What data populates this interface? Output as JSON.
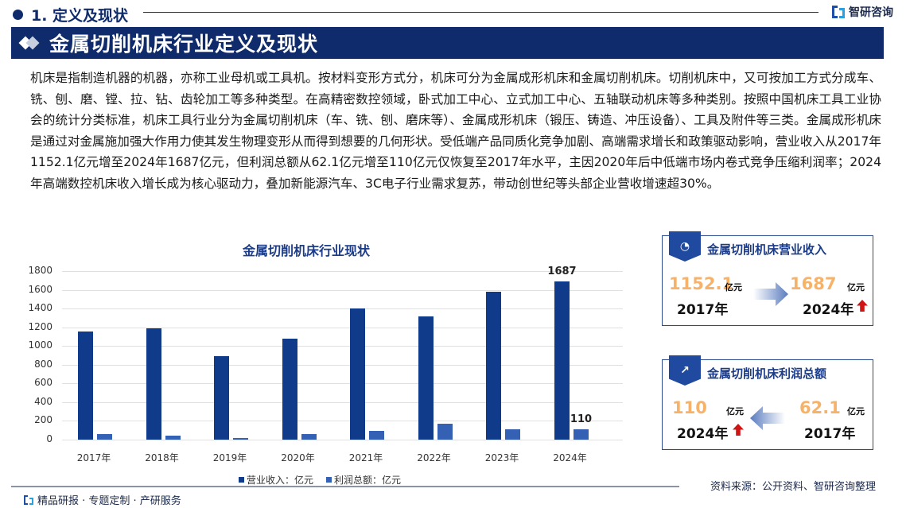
{
  "section": {
    "title": "1. 定义及现状"
  },
  "brand": {
    "name": "智研咨询"
  },
  "banner": {
    "title": "金属切削机床行业定义及现状"
  },
  "body_text": "机床是指制造机器的机器，亦称工业母机或工具机。按材料变形方式分，机床可分为金属成形机床和金属切削机床。切削机床中，又可按加工方式分成车、铣、刨、磨、镗、拉、钻、齿轮加工等多种类型。在高精密数控领域，卧式加工中心、立式加工中心、五轴联动机床等多种类别。按照中国机床工具工业协会的统计分类标准，机床工具行业分为金属切削机床（车、铣、刨、磨床等）、金属成形机床（锻压、铸造、冲压设备）、工具及附件等三类。金属成形机床是通过对金属施加强大作用力使其发生物理变形从而得到想要的几何形状。受低端产品同质化竞争加剧、高端需求增长和政策驱动影响，营业收入从2017年1152.1亿元增至2024年1687亿元，但利润总额从62.1亿元增至110亿元仅恢复至2017年水平，主因2020年后中低端市场内卷式竞争压缩利润率；2024年高端数控机床收入增长成为核心驱动力，叠加新能源汽车、3C电子行业需求复苏，带动创世纪等头部企业营收增速超30%。",
  "chart_data": {
    "type": "bar",
    "title": "金属切削机床行业现状",
    "categories": [
      "2017年",
      "2018年",
      "2019年",
      "2020年",
      "2021年",
      "2022年",
      "2023年",
      "2024年"
    ],
    "series": [
      {
        "name": "营业收入：亿元",
        "color": "#103a8a",
        "values": [
          1152.1,
          1190,
          890,
          1080,
          1400,
          1315,
          1580,
          1687
        ]
      },
      {
        "name": "利润总额：亿元",
        "color": "#3561b5",
        "values": [
          62.1,
          42,
          20,
          60,
          96,
          167,
          110,
          110
        ]
      }
    ],
    "data_labels": [
      {
        "series": 0,
        "index": 7,
        "text": "1687"
      },
      {
        "series": 1,
        "index": 7,
        "text": "110"
      }
    ],
    "y_ticks": [
      "0",
      "200",
      "400",
      "600",
      "800",
      "1000",
      "1200",
      "1400",
      "1600",
      "1800"
    ],
    "xlabel": "",
    "ylabel": "",
    "ylim": [
      0,
      1800
    ],
    "grid": true,
    "legend_position": "bottom"
  },
  "legend": {
    "revenue": "营业收入：亿元",
    "profit": "利润总额：亿元"
  },
  "cards": {
    "revenue": {
      "title": "金属切削机床营业收入",
      "from_value": "1152.1",
      "from_unit": "亿元",
      "from_year": "2017年",
      "to_value": "1687",
      "to_unit": "亿元",
      "to_year": "2024年"
    },
    "profit": {
      "title": "金属切削机床利润总额",
      "left_value": "110",
      "left_unit": "亿元",
      "left_year": "2024年",
      "right_value": "62.1",
      "right_unit": "亿元",
      "right_year": "2017年"
    }
  },
  "footer": {
    "tagline": "精品研报 · 专题定制 · 产研服务",
    "source": "资料来源：公开资料、智研咨询整理"
  }
}
